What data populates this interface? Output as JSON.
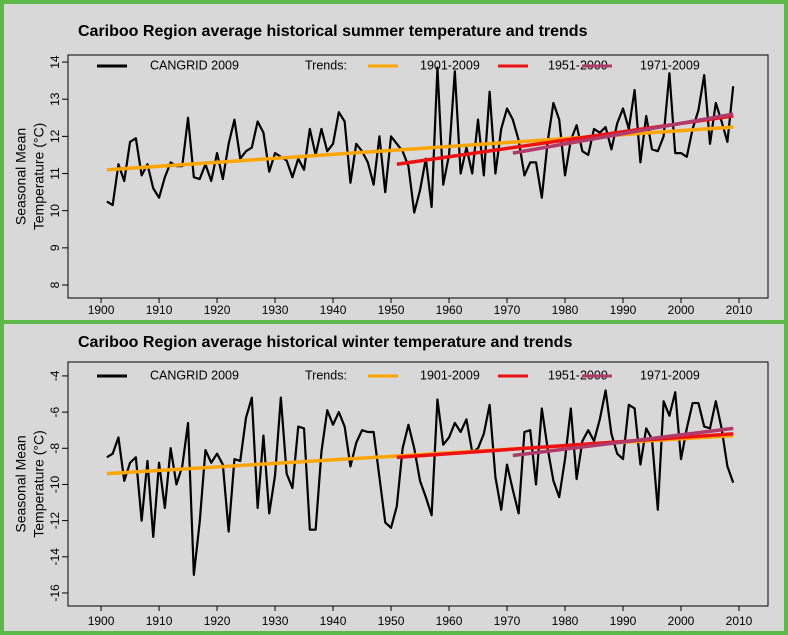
{
  "chart_data": [
    {
      "type": "line",
      "title": "Cariboo Region  average historical summer temperature and trends",
      "y_label": [
        "Seasonal Mean",
        "Temperature (°C)"
      ],
      "legend": "top",
      "legend_title": "Trends:",
      "xlim": [
        1894.3,
        2015
      ],
      "ylim": [
        7.65,
        14.19
      ],
      "xticks": [
        1900,
        1910,
        1920,
        1930,
        1940,
        1950,
        1960,
        1970,
        1980,
        1990,
        2000,
        2010
      ],
      "yticks": [
        8,
        9,
        10,
        11,
        12,
        13,
        14
      ],
      "x": [
        1901,
        1902,
        1903,
        1904,
        1905,
        1906,
        1907,
        1908,
        1909,
        1910,
        1911,
        1912,
        1913,
        1914,
        1915,
        1916,
        1917,
        1918,
        1919,
        1920,
        1921,
        1922,
        1923,
        1924,
        1925,
        1926,
        1927,
        1928,
        1929,
        1930,
        1931,
        1932,
        1933,
        1934,
        1935,
        1936,
        1937,
        1938,
        1939,
        1940,
        1941,
        1942,
        1943,
        1944,
        1945,
        1946,
        1947,
        1948,
        1949,
        1950,
        1951,
        1952,
        1953,
        1954,
        1955,
        1956,
        1957,
        1958,
        1959,
        1960,
        1961,
        1962,
        1963,
        1964,
        1965,
        1966,
        1967,
        1968,
        1969,
        1970,
        1971,
        1972,
        1973,
        1974,
        1975,
        1976,
        1977,
        1978,
        1979,
        1980,
        1981,
        1982,
        1983,
        1984,
        1985,
        1986,
        1987,
        1988,
        1989,
        1990,
        1991,
        1992,
        1993,
        1994,
        1995,
        1996,
        1997,
        1998,
        1999,
        2000,
        2001,
        2002,
        2003,
        2004,
        2005,
        2006,
        2007,
        2008,
        2009
      ],
      "series": [
        {
          "name": "CANGRID 2009",
          "color": "#000000",
          "width": 2.2,
          "values": [
            10.25,
            10.15,
            11.25,
            10.8,
            11.85,
            11.95,
            10.95,
            11.25,
            10.6,
            10.35,
            10.9,
            11.3,
            11.2,
            11.2,
            12.5,
            10.9,
            10.85,
            11.25,
            10.8,
            11.55,
            10.85,
            11.8,
            12.45,
            11.4,
            11.6,
            11.7,
            12.4,
            12.1,
            11.05,
            11.55,
            11.45,
            11.35,
            10.9,
            11.4,
            11.1,
            12.2,
            11.5,
            12.2,
            11.6,
            11.8,
            12.65,
            12.4,
            10.75,
            11.8,
            11.6,
            11.3,
            10.7,
            12.0,
            10.5,
            12.0,
            11.8,
            11.6,
            11.2,
            9.95,
            10.55,
            11.4,
            10.1,
            13.85,
            10.7,
            11.5,
            13.75,
            11.0,
            11.7,
            11.0,
            12.45,
            10.95,
            13.2,
            11.0,
            12.2,
            12.75,
            12.45,
            11.9,
            10.95,
            11.3,
            11.3,
            10.35,
            11.85,
            12.9,
            12.45,
            10.95,
            11.9,
            12.3,
            11.6,
            11.5,
            12.2,
            12.1,
            12.25,
            11.65,
            12.35,
            12.75,
            12.2,
            13.25,
            11.3,
            12.55,
            11.65,
            11.6,
            12.0,
            13.7,
            11.55,
            11.55,
            11.45,
            12.2,
            12.7,
            13.65,
            11.8,
            12.9,
            12.4,
            11.85,
            13.35
          ]
        },
        {
          "name": "1901-2009",
          "color": "#ffa500",
          "width": 3.5,
          "x": [
            1901,
            2009
          ],
          "values": [
            11.1,
            12.25
          ]
        },
        {
          "name": "1951-2009",
          "color": "#ee1111",
          "width": 3.5,
          "x": [
            1951,
            2009
          ],
          "values": [
            11.25,
            12.55
          ]
        },
        {
          "name": "1971-2009",
          "color": "#b03a6a",
          "width": 3.5,
          "x": [
            1971,
            2009
          ],
          "values": [
            11.55,
            12.6
          ]
        }
      ]
    },
    {
      "type": "line",
      "title": "Cariboo Region  average historical winter temperature and trends",
      "y_label": [
        "Seasonal Mean",
        "Temperature (°C)"
      ],
      "legend": "top",
      "legend_title": "Trends:",
      "xlim": [
        1894.3,
        2015
      ],
      "ylim": [
        -16.72,
        -3.23
      ],
      "xticks": [
        1900,
        1910,
        1920,
        1930,
        1940,
        1950,
        1960,
        1970,
        1980,
        1990,
        2000,
        2010
      ],
      "yticks": [
        -4,
        -6,
        -8,
        -10,
        -12,
        -14,
        -16
      ],
      "x": [
        1901,
        1902,
        1903,
        1904,
        1905,
        1906,
        1907,
        1908,
        1909,
        1910,
        1911,
        1912,
        1913,
        1914,
        1915,
        1916,
        1917,
        1918,
        1919,
        1920,
        1921,
        1922,
        1923,
        1924,
        1925,
        1926,
        1927,
        1928,
        1929,
        1930,
        1931,
        1932,
        1933,
        1934,
        1935,
        1936,
        1937,
        1938,
        1939,
        1940,
        1941,
        1942,
        1943,
        1944,
        1945,
        1946,
        1947,
        1948,
        1949,
        1950,
        1951,
        1952,
        1953,
        1954,
        1955,
        1956,
        1957,
        1958,
        1959,
        1960,
        1961,
        1962,
        1963,
        1964,
        1965,
        1966,
        1967,
        1968,
        1969,
        1970,
        1971,
        1972,
        1973,
        1974,
        1975,
        1976,
        1977,
        1978,
        1979,
        1980,
        1981,
        1982,
        1983,
        1984,
        1985,
        1986,
        1987,
        1988,
        1989,
        1990,
        1991,
        1992,
        1993,
        1994,
        1995,
        1996,
        1997,
        1998,
        1999,
        2000,
        2001,
        2002,
        2003,
        2004,
        2005,
        2006,
        2007,
        2008,
        2009
      ],
      "series": [
        {
          "name": "CANGRID 2009",
          "color": "#000000",
          "width": 2.2,
          "values": [
            -8.5,
            -8.3,
            -7.4,
            -9.8,
            -8.8,
            -8.5,
            -12.0,
            -8.7,
            -12.9,
            -8.8,
            -11.3,
            -8.0,
            -10.0,
            -9.0,
            -6.6,
            -15.0,
            -12.1,
            -8.1,
            -8.8,
            -8.3,
            -8.9,
            -12.6,
            -8.6,
            -8.7,
            -6.3,
            -5.2,
            -11.3,
            -7.3,
            -11.6,
            -9.5,
            -5.2,
            -9.4,
            -10.2,
            -6.8,
            -6.9,
            -12.5,
            -12.5,
            -8.2,
            -5.9,
            -6.7,
            -6.0,
            -6.8,
            -9.0,
            -7.7,
            -7.0,
            -7.1,
            -7.1,
            -9.6,
            -12.1,
            -12.4,
            -11.2,
            -8.0,
            -6.7,
            -8.0,
            -9.8,
            -10.7,
            -11.7,
            -5.3,
            -7.8,
            -7.4,
            -6.6,
            -7.1,
            -6.4,
            -8.2,
            -8.0,
            -7.2,
            -5.6,
            -9.6,
            -11.4,
            -8.9,
            -10.3,
            -11.6,
            -7.1,
            -7.0,
            -10.0,
            -5.8,
            -8.0,
            -9.8,
            -10.7,
            -8.6,
            -5.8,
            -9.7,
            -7.6,
            -7.0,
            -7.6,
            -6.4,
            -4.8,
            -7.2,
            -8.3,
            -8.6,
            -5.6,
            -5.8,
            -8.9,
            -6.9,
            -7.5,
            -11.4,
            -5.4,
            -6.2,
            -4.9,
            -8.6,
            -6.9,
            -5.5,
            -5.5,
            -6.8,
            -6.9,
            -5.4,
            -6.9,
            -9.0,
            -9.9
          ]
        },
        {
          "name": "1901-2009",
          "color": "#ffa500",
          "width": 3.5,
          "x": [
            1901,
            2009
          ],
          "values": [
            -9.4,
            -7.3
          ]
        },
        {
          "name": "1951-2009",
          "color": "#ee1111",
          "width": 3.5,
          "x": [
            1951,
            2009
          ],
          "values": [
            -8.5,
            -7.2
          ]
        },
        {
          "name": "1971-2009",
          "color": "#b03a6a",
          "width": 3.5,
          "x": [
            1971,
            2009
          ],
          "values": [
            -8.4,
            -6.9
          ]
        }
      ]
    }
  ]
}
